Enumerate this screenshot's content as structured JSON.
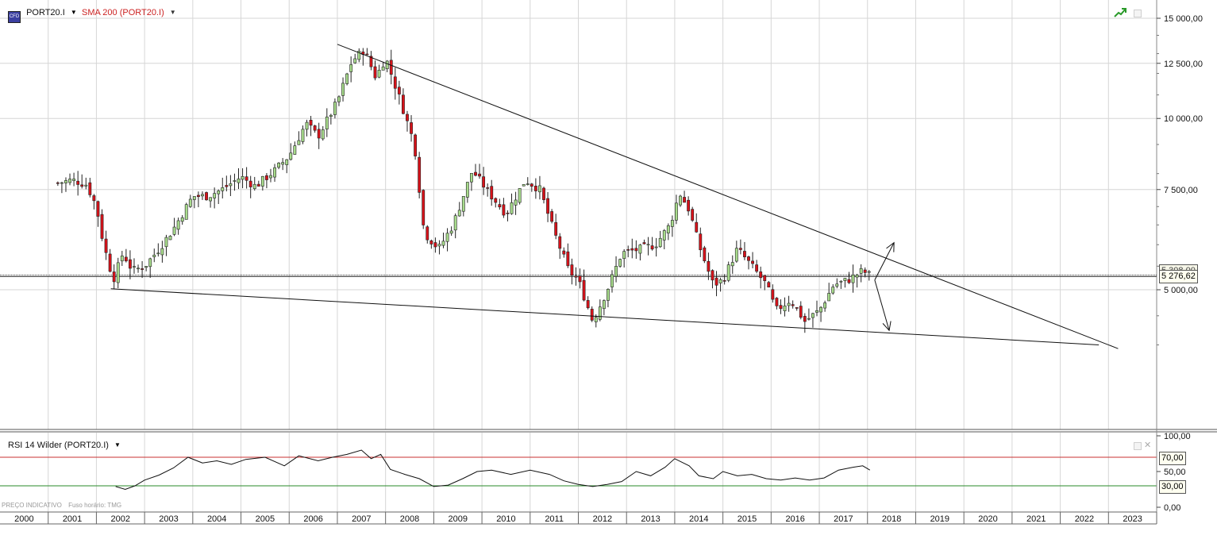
{
  "main_panel": {
    "instrument": "PORT20.I",
    "indicator": "SMA 200 (PORT20.I)",
    "current_price": "5 276,62",
    "previous_price": "5 308,00",
    "colors": {
      "bull": "#a8dc8c",
      "bear": "#d8121a",
      "grid": "#d6d6d6",
      "trend": "#111111",
      "sma": "#cc2222"
    }
  },
  "rsi_panel": {
    "title": "RSI 14 Wilder (PORT20.I)",
    "level_high": "70,00",
    "level_low": "30,00",
    "colors": {
      "line": "#111111",
      "high": "#c83232",
      "low": "#2a8a2a"
    }
  },
  "footer_note": {
    "label": "PREÇO INDICATIVO",
    "timezone": "Fuso horário: TMG"
  },
  "icons": [
    "cfd-icon",
    "trend-icon",
    "restore-icon",
    "close-icon"
  ],
  "chart_data": [
    {
      "type": "candlestick",
      "title": "PORT20.I",
      "interval": "monthly",
      "y_scale": "log",
      "ylim": [
        3400,
        15800
      ],
      "xlim": [
        2000.0,
        2024.0
      ],
      "x_tick_labels": [
        "2000",
        "2001",
        "2002",
        "2003",
        "2004",
        "2005",
        "2006",
        "2007",
        "2008",
        "2009",
        "2010",
        "2011",
        "2012",
        "2013",
        "2014",
        "2015",
        "2016",
        "2017",
        "2018",
        "2019",
        "2020",
        "2021",
        "2022",
        "2023"
      ],
      "y_tick_labels": [
        "5 000,00",
        "7 500,00",
        "10 000,00",
        "12 500,00",
        "15 000,00"
      ],
      "y_ticks": [
        5000,
        7500,
        10000,
        12500,
        15000
      ],
      "horizontal_lines": [
        5308,
        5276.62
      ],
      "close_path": [
        [
          2001.2,
          7700
        ],
        [
          2001.5,
          7800
        ],
        [
          2001.8,
          7650
        ],
        [
          2002.0,
          7000
        ],
        [
          2002.15,
          6000
        ],
        [
          2002.35,
          5200
        ],
        [
          2002.55,
          5800
        ],
        [
          2002.75,
          5400
        ],
        [
          2003.0,
          5500
        ],
        [
          2003.3,
          5900
        ],
        [
          2003.6,
          6400
        ],
        [
          2004.0,
          7300
        ],
        [
          2004.3,
          7300
        ],
        [
          2004.6,
          7500
        ],
        [
          2005.0,
          7900
        ],
        [
          2005.3,
          7600
        ],
        [
          2005.7,
          8100
        ],
        [
          2006.0,
          8600
        ],
        [
          2006.35,
          9800
        ],
        [
          2006.6,
          9300
        ],
        [
          2007.0,
          10700
        ],
        [
          2007.3,
          12600
        ],
        [
          2007.55,
          13200
        ],
        [
          2007.8,
          11800
        ],
        [
          2008.0,
          12800
        ],
        [
          2008.3,
          10800
        ],
        [
          2008.6,
          9000
        ],
        [
          2008.8,
          6300
        ],
        [
          2009.1,
          5900
        ],
        [
          2009.4,
          6500
        ],
        [
          2009.8,
          8100
        ],
        [
          2010.2,
          7300
        ],
        [
          2010.5,
          6800
        ],
        [
          2010.9,
          7800
        ],
        [
          2011.2,
          7500
        ],
        [
          2011.5,
          6300
        ],
        [
          2011.8,
          5400
        ],
        [
          2012.0,
          5200
        ],
        [
          2012.3,
          4400
        ],
        [
          2012.6,
          5000
        ],
        [
          2012.9,
          5800
        ],
        [
          2013.3,
          5900
        ],
        [
          2013.6,
          6000
        ],
        [
          2013.9,
          6500
        ],
        [
          2014.1,
          7400
        ],
        [
          2014.3,
          6900
        ],
        [
          2014.5,
          6000
        ],
        [
          2014.8,
          5100
        ],
        [
          2015.0,
          5200
        ],
        [
          2015.3,
          5900
        ],
        [
          2015.6,
          5500
        ],
        [
          2015.9,
          5100
        ],
        [
          2016.1,
          4600
        ],
        [
          2016.4,
          4800
        ],
        [
          2016.7,
          4400
        ],
        [
          2017.0,
          4600
        ],
        [
          2017.3,
          5100
        ],
        [
          2017.6,
          5200
        ],
        [
          2017.9,
          5400
        ],
        [
          2018.05,
          5300
        ],
        [
          2018.1,
          5276.62
        ]
      ],
      "trendlines": [
        {
          "from": [
            2007.0,
            13500
          ],
          "to": [
            2023.2,
            3940
          ]
        },
        {
          "from": [
            2002.3,
            5020
          ],
          "to": [
            2022.8,
            4000
          ]
        }
      ],
      "projection_arrows": [
        {
          "from": [
            2018.15,
            5200
          ],
          "to": [
            2018.55,
            6050
          ]
        },
        {
          "from": [
            2018.15,
            5200
          ],
          "to": [
            2018.45,
            4240
          ]
        }
      ]
    },
    {
      "type": "line",
      "title": "RSI 14 Wilder (PORT20.I)",
      "ylim": [
        0,
        100
      ],
      "y_tick_labels": [
        "0,00",
        "50,00",
        "100,00"
      ],
      "y_ticks": [
        0,
        50,
        100
      ],
      "levels": [
        70,
        30
      ],
      "x": [
        2002.4,
        2002.6,
        2002.8,
        2003.0,
        2003.3,
        2003.6,
        2003.9,
        2004.2,
        2004.5,
        2004.8,
        2005.1,
        2005.5,
        2005.9,
        2006.2,
        2006.6,
        2006.9,
        2007.2,
        2007.5,
        2007.7,
        2007.9,
        2008.1,
        2008.4,
        2008.7,
        2009.0,
        2009.3,
        2009.6,
        2009.9,
        2010.2,
        2010.6,
        2011.0,
        2011.4,
        2011.7,
        2012.0,
        2012.3,
        2012.6,
        2012.9,
        2013.2,
        2013.5,
        2013.8,
        2014.0,
        2014.3,
        2014.5,
        2014.8,
        2015.0,
        2015.3,
        2015.6,
        2015.9,
        2016.2,
        2016.5,
        2016.8,
        2017.1,
        2017.4,
        2017.7,
        2017.9,
        2018.05
      ],
      "y": [
        29,
        25,
        30,
        38,
        45,
        55,
        70,
        62,
        65,
        60,
        67,
        70,
        58,
        72,
        65,
        70,
        74,
        80,
        68,
        74,
        53,
        46,
        40,
        29,
        31,
        40,
        50,
        52,
        46,
        52,
        46,
        37,
        32,
        29,
        32,
        36,
        50,
        44,
        56,
        68,
        58,
        44,
        40,
        50,
        44,
        46,
        40,
        38,
        41,
        38,
        41,
        52,
        56,
        58,
        52
      ]
    }
  ]
}
